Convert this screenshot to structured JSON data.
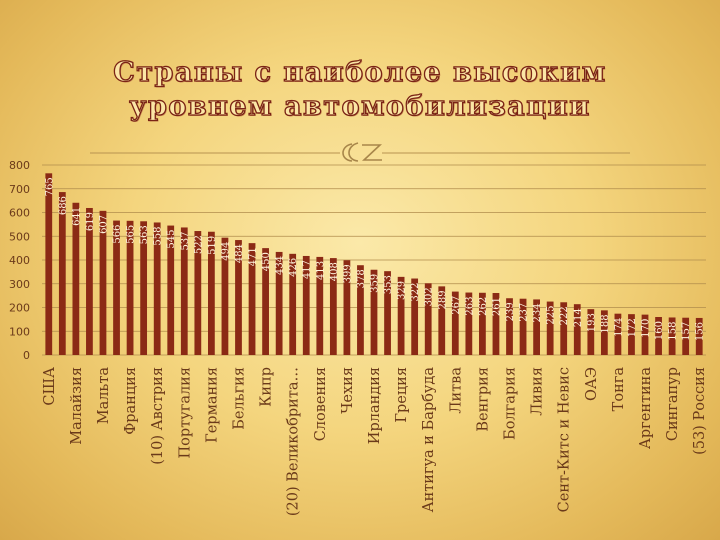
{
  "slide": {
    "title_line1": "Страны с наиболее высоким",
    "title_line2": "уровнем автомобилизации"
  },
  "colors": {
    "bar": "#8b2a15",
    "value_label": "#fff6e0",
    "axis_text": "#6b3a1a",
    "grid": "#b08c4c",
    "title": "#7a2315",
    "background": "#f4d57e"
  },
  "chart_data": {
    "type": "bar",
    "title": "",
    "xlabel": "",
    "ylabel": "",
    "ylim": [
      0,
      800
    ],
    "yticks": [
      0,
      100,
      200,
      300,
      400,
      500,
      600,
      700,
      800
    ],
    "grid": true,
    "legend": "none",
    "categories": [
      "США",
      "",
      "Малайзия",
      "",
      "Мальта",
      "",
      "Франция",
      "",
      "(10) Австрия",
      "",
      "Португалия",
      "",
      "Германия",
      "",
      "Бельгия",
      "",
      "Кипр",
      "",
      "(20) Великобрита…",
      "",
      "Словения",
      "",
      "Чехия",
      "",
      "Ирландия",
      "",
      "Греция",
      "",
      "Антигуа и Барбуда",
      "",
      "Литва",
      "",
      "Венгрия",
      "",
      "Болгария",
      "",
      "Ливия",
      "",
      "Сент-Китс и Невис",
      "",
      "ОАЭ",
      "",
      "Тонга",
      "",
      "Аргентина",
      "",
      "Сингапур",
      "",
      "(53) Россия"
    ],
    "values": [
      765,
      686,
      641,
      619,
      607,
      566,
      565,
      563,
      558,
      545,
      537,
      522,
      519,
      494,
      484,
      471,
      450,
      434,
      426,
      417,
      413,
      408,
      399,
      378,
      359,
      353,
      329,
      322,
      302,
      289,
      267,
      263,
      262,
      261,
      239,
      237,
      234,
      225,
      222,
      214,
      193,
      188,
      174,
      172,
      170,
      160,
      158,
      157,
      156
    ]
  }
}
